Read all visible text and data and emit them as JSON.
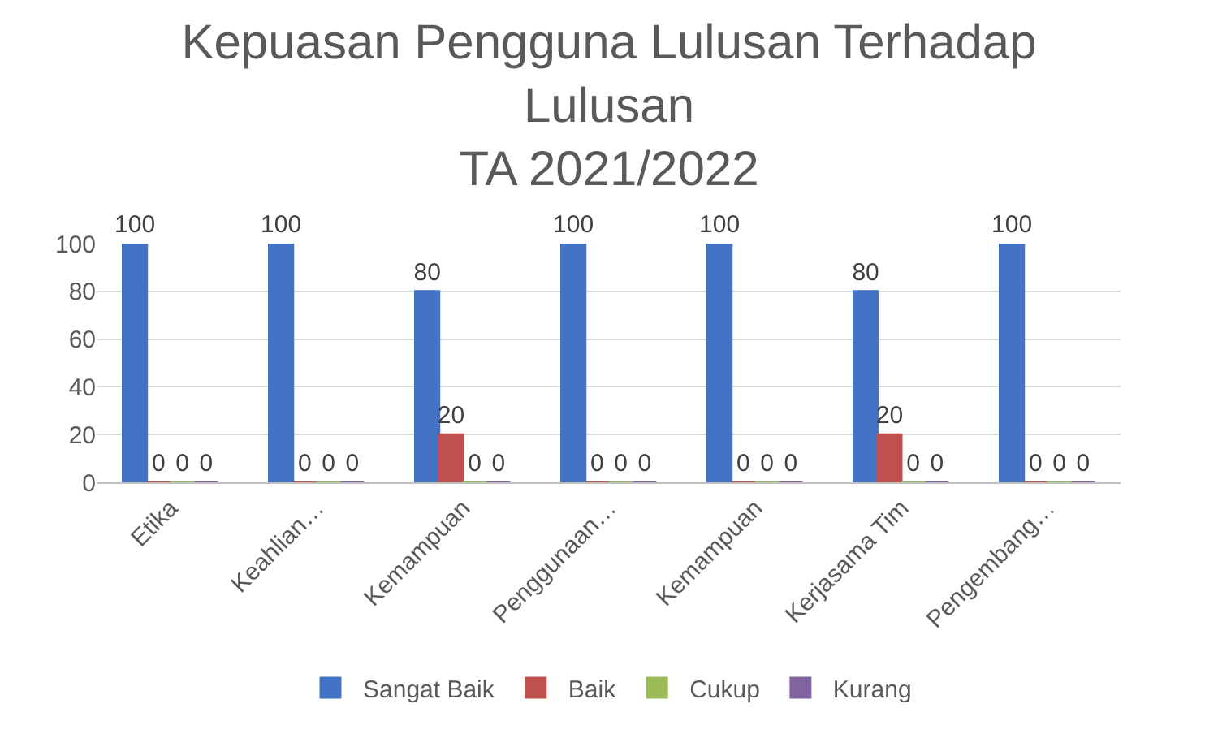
{
  "chart_data": {
    "type": "bar",
    "title": "Kepuasan Pengguna Lulusan Terhadap Lulusan\nTA 2021/2022",
    "categories": [
      "Etika",
      "Keahlian…",
      "Kemampuan",
      "Penggunaan…",
      "Kemampuan",
      "Kerjasama Tim",
      "Pengembang…"
    ],
    "series": [
      {
        "name": "Sangat Baik",
        "color": "#4472c4",
        "values": [
          100,
          100,
          80,
          100,
          100,
          80,
          100
        ]
      },
      {
        "name": "Baik",
        "color": "#c0504d",
        "values": [
          0,
          0,
          20,
          0,
          0,
          20,
          0
        ]
      },
      {
        "name": "Cukup",
        "color": "#9bbb59",
        "values": [
          0,
          0,
          0,
          0,
          0,
          0,
          0
        ]
      },
      {
        "name": "Kurang",
        "color": "#8064a2",
        "values": [
          0,
          0,
          0,
          0,
          0,
          0,
          0
        ]
      }
    ],
    "ylim": [
      0,
      100
    ],
    "yticks": [
      0,
      20,
      40,
      60,
      80,
      100
    ],
    "grid": "y",
    "legend": "bottom",
    "data_labels": true
  }
}
